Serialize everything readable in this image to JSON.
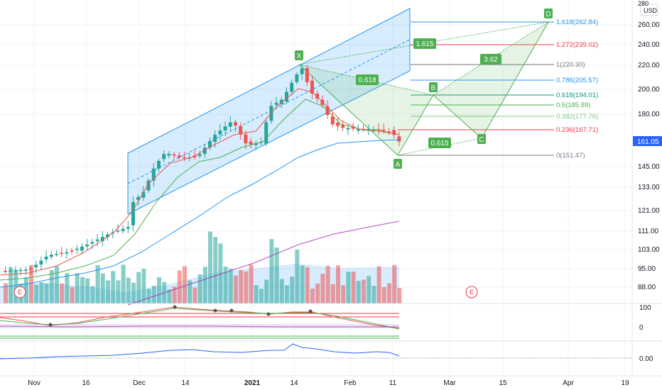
{
  "header": {
    "currency_label": "USD",
    "top_partial_label": "280"
  },
  "price_axis": {
    "labels": [
      "260.00",
      "240.00",
      "220.00",
      "200.00",
      "180.00",
      "145.00",
      "133.00",
      "121.00",
      "111.00",
      "103.00",
      "95.00",
      "88.00"
    ],
    "current_price": "161.05",
    "current_price_color": "#2962ff"
  },
  "oscillator_axis": {
    "labels": [
      "100",
      "0"
    ]
  },
  "lower_axis": {
    "labels": [
      "0.00"
    ]
  },
  "time_axis": {
    "labels": [
      "Nov",
      "16",
      "Dec",
      "14",
      "2021",
      "14",
      "Feb",
      "11",
      "Mar",
      "15",
      "Apr",
      "19"
    ]
  },
  "fibonacci": {
    "levels": [
      {
        "label": "1.618(262.84)",
        "color": "#2196f3"
      },
      {
        "label": "1.272(239.02)",
        "color": "#f23645"
      },
      {
        "label": "1(220.30)",
        "color": "#787b86"
      },
      {
        "label": "0.786(205.57)",
        "color": "#2196f3"
      },
      {
        "label": "0.618(194.01)",
        "color": "#089981"
      },
      {
        "label": "0.5(185.89)",
        "color": "#4caf50"
      },
      {
        "label": "0.382(177.76)",
        "color": "#81c784"
      },
      {
        "label": "0.236(167.71)",
        "color": "#f23645"
      },
      {
        "label": "0(151.47)",
        "color": "#787b86"
      }
    ]
  },
  "pattern": {
    "points": [
      "X",
      "A",
      "B",
      "C",
      "D"
    ],
    "ratios": [
      "0.618",
      "1.615",
      "3.62",
      "0.615"
    ],
    "color": "#4caf50"
  },
  "earnings_markers": [
    "E",
    "E"
  ],
  "colors": {
    "up": "#26a69a",
    "down": "#ef5350",
    "channel": "#2196f3",
    "ma_purple": "#9c27b0"
  }
}
